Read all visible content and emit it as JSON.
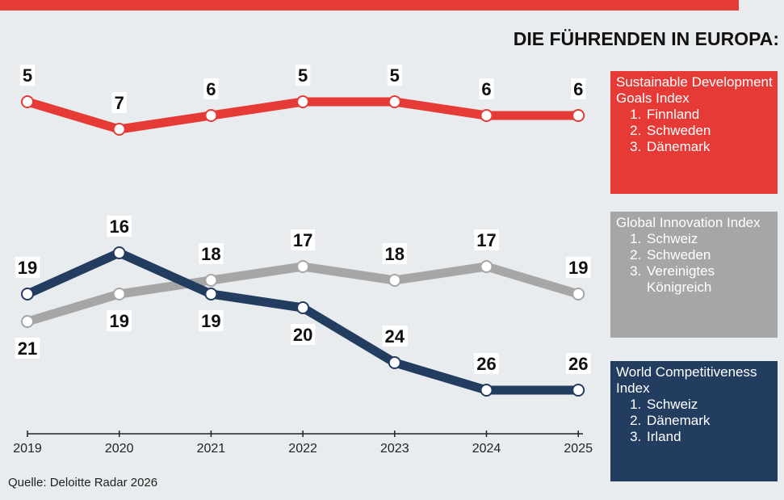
{
  "chart_data": {
    "type": "line",
    "title": "DIE FÜHRENDEN IN EUROPA:",
    "categories": [
      "2019",
      "2020",
      "2021",
      "2022",
      "2023",
      "2024",
      "2025"
    ],
    "ylim": [
      0,
      29
    ],
    "y_reversed": true,
    "series": [
      {
        "name": "Sustainable Development Goals Index",
        "color": "#e63a36",
        "values": [
          5,
          7,
          6,
          5,
          5,
          6,
          6
        ],
        "leaders": [
          "Finnland",
          "Schweden",
          "Dänemark"
        ]
      },
      {
        "name": "Global Innovation Index",
        "color": "#a6a6a6",
        "values": [
          21,
          19,
          18,
          17,
          18,
          17,
          19
        ],
        "leaders": [
          "Schweiz",
          "Schweden",
          "Vereinigtes Königreich"
        ]
      },
      {
        "name": "World Competitiveness Index",
        "color": "#233d61",
        "values": [
          19,
          16,
          19,
          20,
          24,
          26,
          26
        ],
        "leaders": [
          "Schweiz",
          "Dänemark",
          "Irland"
        ]
      }
    ],
    "source": "Quelle: Deloitte Radar 2026"
  }
}
